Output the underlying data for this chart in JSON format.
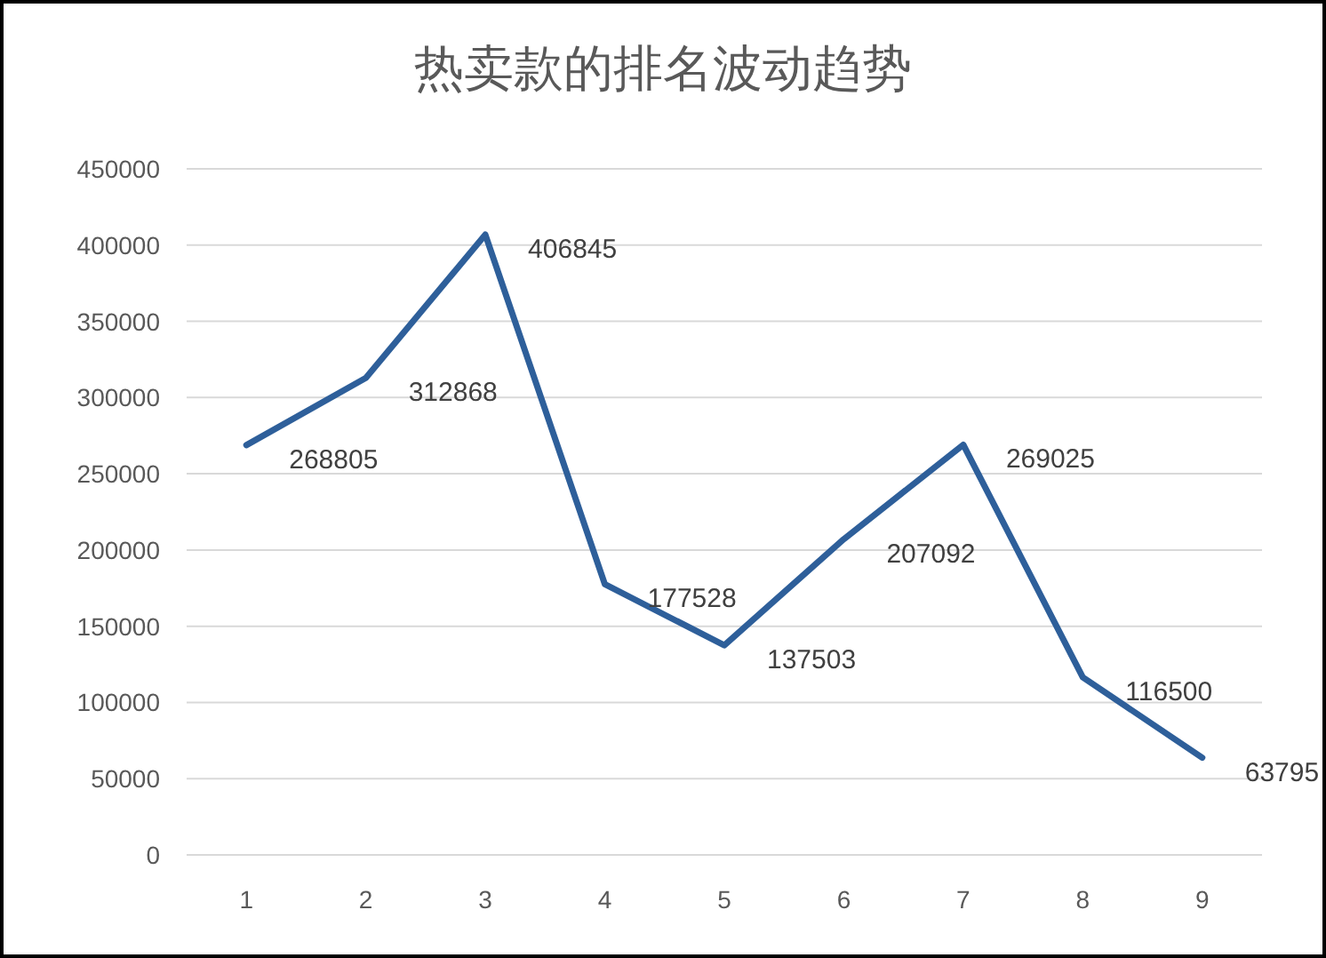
{
  "chart_data": {
    "type": "line",
    "title": "热卖款的排名波动趋势",
    "categories": [
      "1",
      "2",
      "3",
      "4",
      "5",
      "6",
      "7",
      "8",
      "9"
    ],
    "series": [
      {
        "color": "#2e5f9a",
        "values": [
          268805,
          312868,
          406845,
          177528,
          137503,
          207092,
          269025,
          116500,
          63795
        ]
      }
    ],
    "ylim": [
      0,
      450000
    ],
    "yticks": [
      0,
      50000,
      100000,
      150000,
      200000,
      250000,
      300000,
      350000,
      400000,
      450000
    ],
    "grid": "y",
    "data_labels": true,
    "marker": "none",
    "line_style": "solid"
  }
}
